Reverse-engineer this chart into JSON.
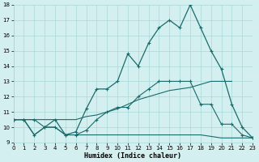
{
  "xlabel": "Humidex (Indice chaleur)",
  "bg_color": "#d4efef",
  "grid_color": "#a8d8d8",
  "line_color": "#1a6b6b",
  "x": [
    0,
    1,
    2,
    3,
    4,
    5,
    6,
    7,
    8,
    9,
    10,
    11,
    12,
    13,
    14,
    15,
    16,
    17,
    18,
    19,
    20,
    21,
    22,
    23
  ],
  "line_main": [
    10.5,
    10.5,
    9.5,
    10.0,
    10.5,
    9.5,
    9.7,
    11.2,
    12.5,
    12.5,
    13.0,
    14.8,
    14.0,
    15.5,
    16.5,
    17.0,
    16.5,
    18.0,
    16.5,
    15.0,
    13.8,
    11.5,
    10.0,
    9.3
  ],
  "line_med": [
    10.5,
    10.5,
    10.5,
    10.0,
    10.0,
    9.5,
    9.5,
    9.8,
    10.5,
    11.0,
    11.3,
    11.3,
    12.0,
    12.5,
    13.0,
    13.0,
    13.0,
    13.0,
    11.5,
    11.5,
    10.2,
    10.2,
    9.5,
    9.3
  ],
  "line_rise": [
    10.5,
    10.5,
    10.5,
    10.5,
    10.5,
    10.5,
    10.5,
    10.7,
    10.8,
    11.0,
    11.2,
    11.5,
    11.8,
    12.0,
    12.2,
    12.4,
    12.5,
    12.6,
    12.8,
    13.0,
    13.0,
    13.0,
    null,
    null
  ],
  "line_bot": [
    10.5,
    10.5,
    9.5,
    10.0,
    10.0,
    9.5,
    9.5,
    9.5,
    9.5,
    9.5,
    9.5,
    9.5,
    9.5,
    9.5,
    9.5,
    9.5,
    9.5,
    9.5,
    9.5,
    9.4,
    9.3,
    9.3,
    9.3,
    9.3
  ],
  "ylim": [
    9,
    18
  ],
  "xlim": [
    0,
    23
  ]
}
